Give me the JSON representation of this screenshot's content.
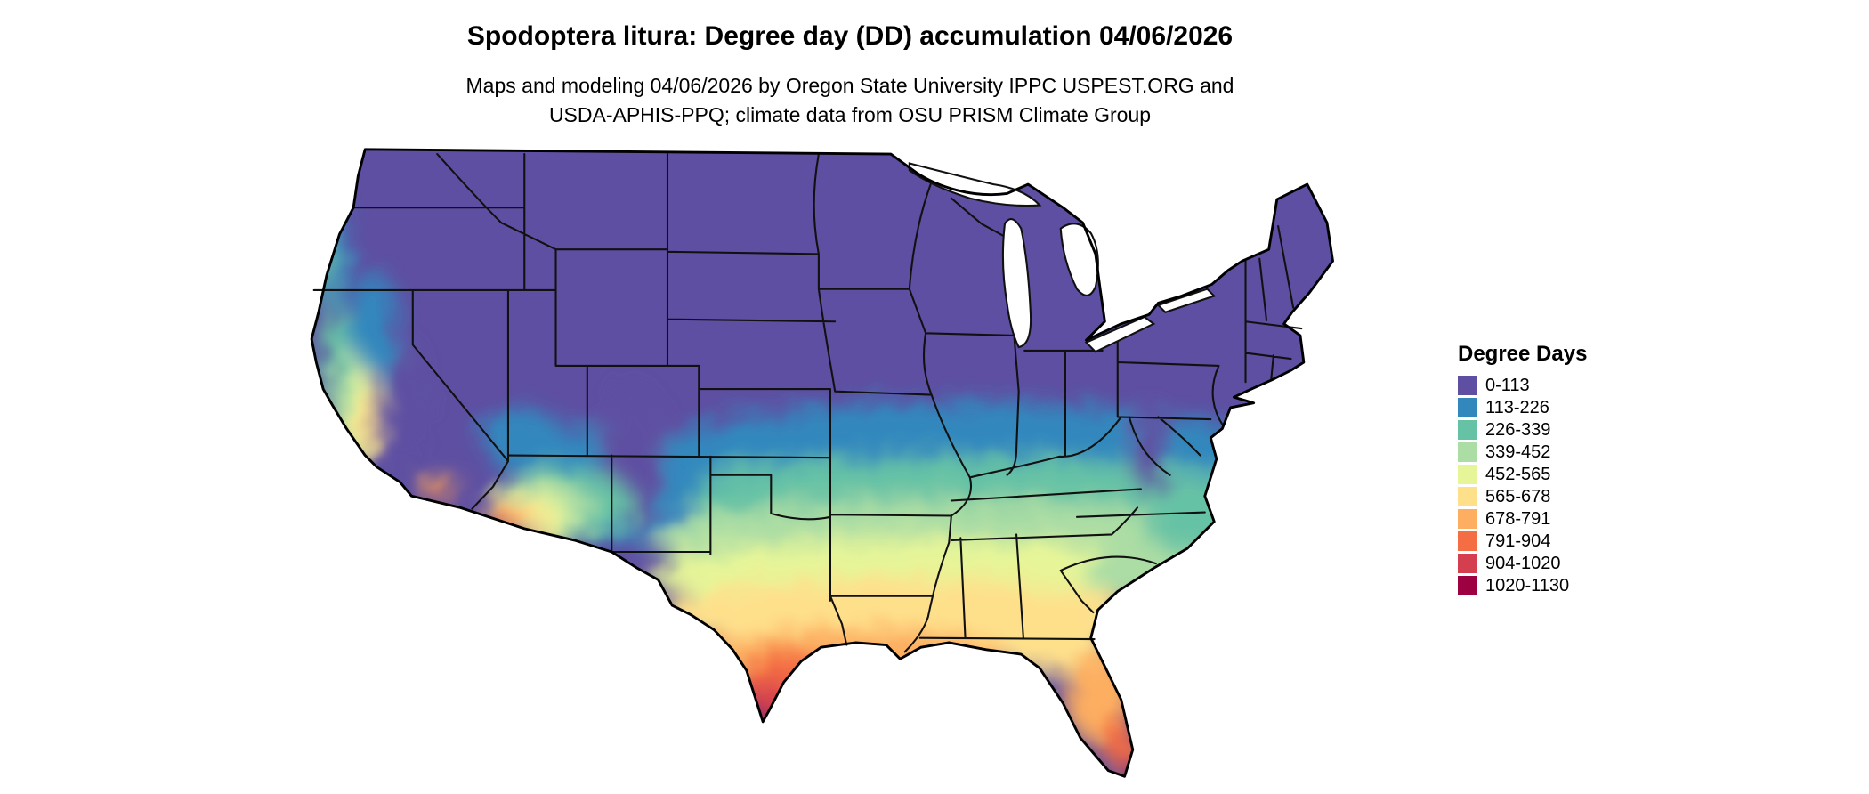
{
  "title": "Spodoptera litura: Degree day (DD) accumulation 04/06/2026",
  "subtitle": {
    "line1": "Maps and modeling 04/06/2026 by Oregon State University IPPC USPEST.ORG and",
    "line2": "USDA-APHIS-PPQ; climate data from OSU PRISM Climate Group"
  },
  "legend": {
    "title": "Degree Days",
    "items": [
      {
        "label": "0-113",
        "color": "#5e4fa2"
      },
      {
        "label": "113-226",
        "color": "#3288bd"
      },
      {
        "label": "226-339",
        "color": "#66c2a5"
      },
      {
        "label": "339-452",
        "color": "#abdda4"
      },
      {
        "label": "452-565",
        "color": "#e6f598"
      },
      {
        "label": "565-678",
        "color": "#fee08b"
      },
      {
        "label": "678-791",
        "color": "#fdae61"
      },
      {
        "label": "791-904",
        "color": "#f46d43"
      },
      {
        "label": "904-1020",
        "color": "#d53e4f"
      },
      {
        "label": "1020-1130",
        "color": "#9e0142"
      }
    ]
  },
  "map": {
    "region": "Contiguous United States",
    "background": "#ffffff"
  }
}
